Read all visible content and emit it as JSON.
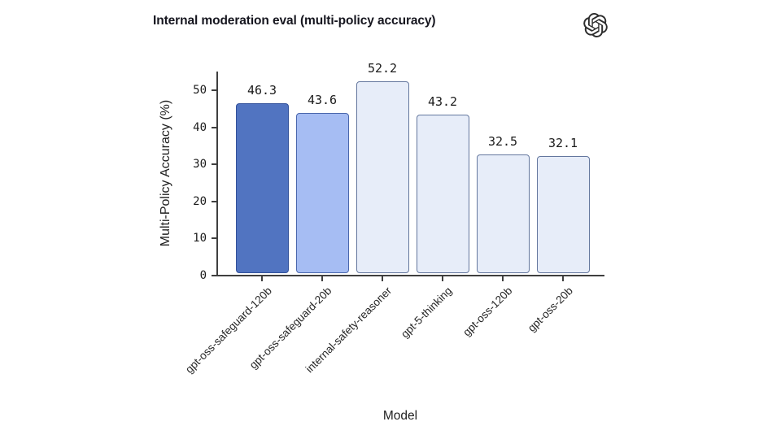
{
  "header": {
    "logo_icon": "openai-logo"
  },
  "colors": {
    "axis": "#3f3f3f",
    "text": "#1f1f1f",
    "logo": "#2d2d2d",
    "background": "#ffffff"
  },
  "chart_data": {
    "type": "bar",
    "title": "Internal moderation eval (multi-policy accuracy)",
    "xlabel": "Model",
    "ylabel": "Multi-Policy Accuracy (%)",
    "categories": [
      "gpt-oss-safeguard-120b",
      "gpt-oss-safeguard-20b",
      "internal-safety-reasoner",
      "gpt-5-thinking",
      "gpt-oss-120b",
      "gpt-oss-20b"
    ],
    "values": [
      46.3,
      43.6,
      52.2,
      43.2,
      32.5,
      32.1
    ],
    "yticks": [
      0,
      10,
      20,
      30,
      40,
      50
    ],
    "ylim": [
      0,
      55
    ],
    "grid": false,
    "legend": null,
    "bar_colors": [
      {
        "fill": "#5174c1",
        "stroke": "#31509a"
      },
      {
        "fill": "#a6bdf3",
        "stroke": "#4a67ad"
      },
      {
        "fill": "#e7edf9",
        "stroke": "#64779e"
      },
      {
        "fill": "#e7edf9",
        "stroke": "#64779e"
      },
      {
        "fill": "#e7edf9",
        "stroke": "#64779e"
      },
      {
        "fill": "#e7edf9",
        "stroke": "#64779e"
      }
    ]
  }
}
